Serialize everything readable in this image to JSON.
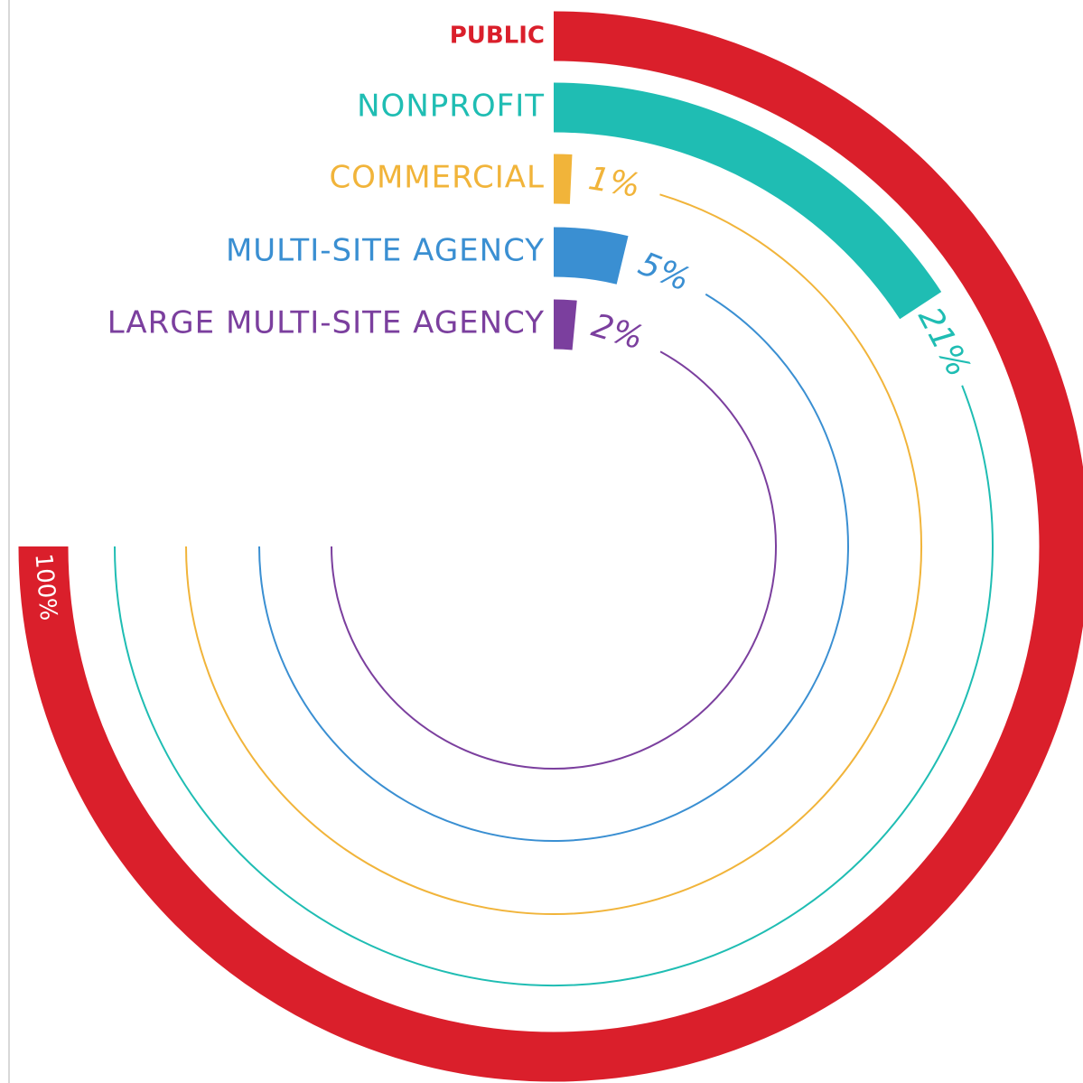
{
  "chart_data": {
    "type": "radial_bar",
    "categories": [
      "PUBLIC",
      "NONPROFIT",
      "COMMERCIAL",
      "MULTI-SITE AGENCY",
      "LARGE MULTI-SITE AGENCY"
    ],
    "values": [
      100,
      21,
      1,
      5,
      2
    ],
    "value_labels": [
      "100%",
      "21%",
      "1%",
      "5%",
      "2%"
    ],
    "colors": [
      "#da1f2b",
      "#1fbdb3",
      "#f1b43a",
      "#3a8fd2",
      "#7b3f9e"
    ]
  }
}
